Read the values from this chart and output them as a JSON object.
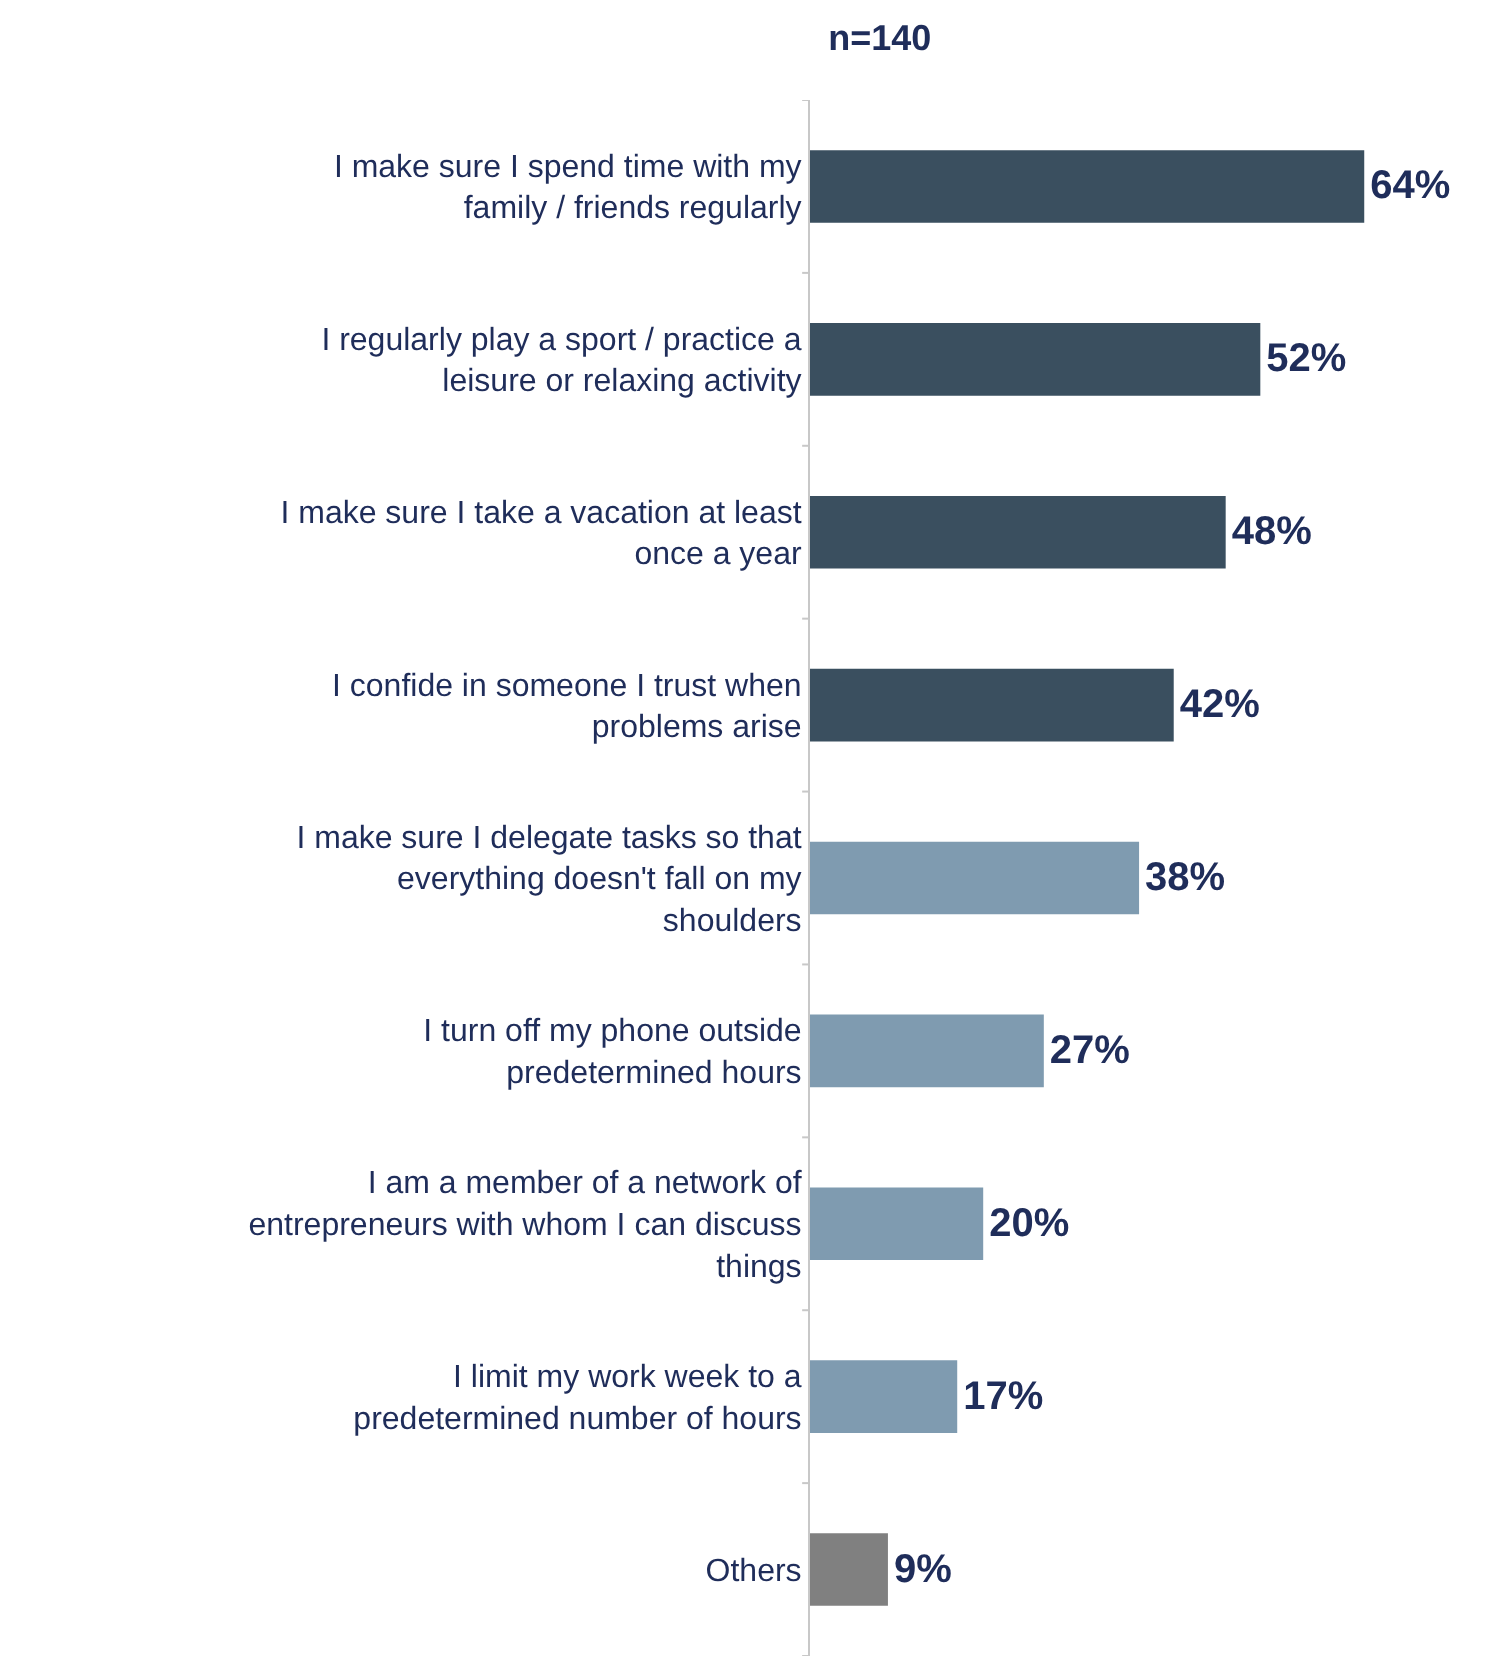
{
  "chart_data": {
    "type": "bar",
    "orientation": "horizontal",
    "title": "n=140",
    "categories": [
      "I make sure I spend time with my family / friends regularly",
      "I regularly play a sport / practice a leisure or relaxing activity",
      "I make sure I take a vacation at least once a year",
      "I confide in someone I trust when problems arise",
      "I make sure I delegate tasks so that everything doesn't fall on my shoulders",
      "I turn off my phone outside predetermined hours",
      "I am a member of a network of entrepreneurs with whom I can discuss things",
      "I limit my work week to a predetermined number of hours",
      "Others"
    ],
    "values": [
      64,
      52,
      48,
      42,
      38,
      27,
      20,
      17,
      9
    ],
    "colors": [
      "#3a4f5f",
      "#3a4f5f",
      "#3a4f5f",
      "#3a4f5f",
      "#7f9bb0",
      "#7f9bb0",
      "#7f9bb0",
      "#7f9bb0",
      "#808080"
    ],
    "value_labels": [
      "64%",
      "52%",
      "48%",
      "42%",
      "38%",
      "27%",
      "20%",
      "17%",
      "9%"
    ]
  }
}
